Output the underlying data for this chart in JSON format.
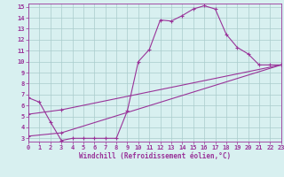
{
  "bg_color": "#d8f0f0",
  "line_color": "#993399",
  "grid_color": "#aacccc",
  "xlabel": "Windchill (Refroidissement éolien,°C)",
  "xlim": [
    0,
    23
  ],
  "ylim": [
    2.7,
    15.3
  ],
  "yticks": [
    3,
    4,
    5,
    6,
    7,
    8,
    9,
    10,
    11,
    12,
    13,
    14,
    15
  ],
  "xticks": [
    0,
    1,
    2,
    3,
    4,
    5,
    6,
    7,
    8,
    9,
    10,
    11,
    12,
    13,
    14,
    15,
    16,
    17,
    18,
    19,
    20,
    21,
    22,
    23
  ],
  "curve1_x": [
    0,
    1,
    2,
    3,
    4,
    5,
    6,
    7,
    8,
    9,
    10,
    11,
    12,
    13,
    14,
    15,
    16,
    17,
    18,
    19,
    20,
    21,
    22,
    23
  ],
  "curve1_y": [
    6.7,
    6.3,
    4.5,
    2.8,
    3.0,
    3.0,
    3.0,
    3.0,
    3.0,
    5.5,
    10.0,
    11.1,
    13.8,
    13.7,
    14.2,
    14.8,
    15.1,
    14.8,
    12.5,
    11.3,
    10.7,
    9.7,
    9.7,
    9.7
  ],
  "curve2_x": [
    0,
    3,
    23
  ],
  "curve2_y": [
    5.2,
    5.6,
    9.7
  ],
  "curve3_x": [
    0,
    3,
    23
  ],
  "curve3_y": [
    3.2,
    3.5,
    9.7
  ],
  "tick_fontsize": 5,
  "xlabel_fontsize": 5.5
}
